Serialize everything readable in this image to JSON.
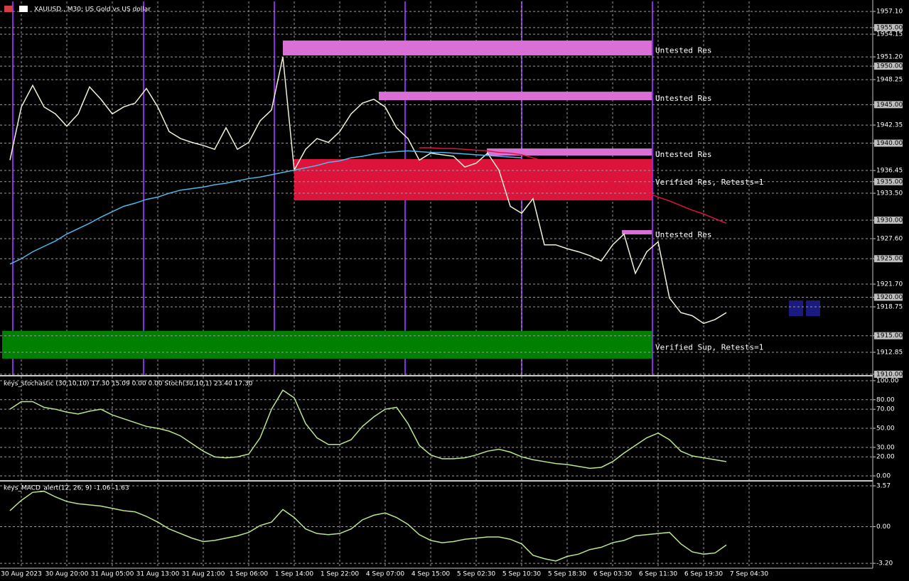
{
  "chart_data": [
    {
      "type": "line",
      "title": "XAUUSD., M30: US Gold vs US dollar",
      "categories": [
        null,
        "30 Aug 2023",
        null,
        null,
        null,
        "30 Aug 20:00",
        null,
        null,
        null,
        "31 Aug 05:00",
        null,
        null,
        null,
        "31 Aug 13:00",
        null,
        null,
        null,
        "31 Aug 21:00",
        null,
        null,
        null,
        "1 Sep 06:00",
        null,
        null,
        null,
        "1 Sep 14:00",
        null,
        null,
        null,
        "1 Sep 22:00",
        null,
        null,
        null,
        "4 Sep 07:00",
        null,
        null,
        null,
        "4 Sep 15:00",
        null,
        null,
        null,
        "5 Sep 02:30",
        null,
        null,
        null,
        "5 Sep 10:30",
        null,
        null,
        null,
        "5 Sep 18:30",
        null,
        null,
        null,
        "6 Sep 03:30",
        null,
        null,
        null,
        "6 Sep 11:30",
        null,
        null,
        null,
        "6 Sep 19:30",
        null,
        null,
        null,
        "7 Sep 04:30"
      ],
      "series": [
        {
          "color": "#f0f0d8",
          "values": [
            1937.8,
            1944.7,
            1947.5,
            1944.7,
            1943.8,
            1942.2,
            1943.8,
            1947.3,
            1945.7,
            1943.8,
            1944.7,
            1945.2,
            1947.1,
            1944.7,
            1941.5,
            1940.6,
            1940.1,
            1939.7,
            1939.2,
            1942.0,
            1939.2,
            1940.1,
            1942.9,
            1944.3,
            1951.2,
            1936.5,
            1939.2,
            1940.6,
            1940.1,
            1941.5,
            1943.8,
            1945.2,
            1945.7,
            1944.7,
            1942.0,
            1940.6,
            1937.8,
            1938.7,
            1938.5,
            1938.3,
            1936.9,
            1937.4,
            1938.7,
            1936.5,
            1931.8,
            1930.9,
            1932.8,
            1926.8,
            1926.8,
            1926.3,
            1925.9,
            1925.4,
            1924.7,
            1926.8,
            1928.2,
            1923.1,
            1925.9,
            1927.2,
            1919.9,
            1918.0,
            1917.6,
            1916.6,
            1917.1,
            1918.0,
            null,
            null
          ]
        },
        {
          "color": "#4fb8e8",
          "values": [
            1924.3,
            1925.0,
            1925.9,
            1926.6,
            1927.3,
            1928.2,
            1928.9,
            1929.6,
            1930.4,
            1931.1,
            1931.8,
            1932.2,
            1932.7,
            1933.0,
            1933.5,
            1933.9,
            1934.1,
            1934.3,
            1934.6,
            1934.8,
            1935.1,
            1935.4,
            1935.6,
            1935.9,
            1936.2,
            1936.5,
            1936.8,
            1937.1,
            1937.5,
            1937.7,
            1938.1,
            1938.3,
            1938.6,
            1938.8,
            1938.9,
            1939.0,
            1938.9,
            1938.8,
            1938.8,
            1938.7,
            1938.6,
            1938.5,
            1938.4,
            1938.3,
            1938.2,
            1938.1,
            null,
            null,
            null,
            null,
            null,
            null,
            null,
            null,
            null,
            null,
            null,
            null,
            null,
            null,
            null,
            null,
            null,
            null,
            null,
            null
          ]
        },
        {
          "color": "#dc143c",
          "values": [
            null,
            null,
            null,
            null,
            null,
            null,
            null,
            null,
            null,
            null,
            null,
            null,
            null,
            null,
            null,
            null,
            null,
            null,
            null,
            null,
            null,
            null,
            null,
            null,
            null,
            null,
            null,
            null,
            null,
            null,
            null,
            null,
            null,
            null,
            null,
            null,
            1939.4,
            1939.4,
            1939.3,
            1939.3,
            1939.2,
            1939.1,
            1939.0,
            1938.8,
            1938.7,
            1938.5,
            1938.1,
            1937.6,
            1937.2,
            1936.7,
            1936.3,
            1935.8,
            1935.4,
            1934.9,
            1934.5,
            1934.0,
            1933.6,
            1933.0,
            1932.5,
            1931.9,
            1931.3,
            1930.8,
            1930.2,
            1929.6,
            null,
            null
          ]
        }
      ],
      "zones": [
        {
          "label": "Untested Res",
          "ymin": 1951.39,
          "ymax": 1953.32,
          "color": "#da70d6"
        },
        {
          "label": "Untested Res",
          "ymin": 1945.58,
          "ymax": 1946.68,
          "color": "#da70d6"
        },
        {
          "label": "Untested Res",
          "ymin": 1938.39,
          "ymax": 1939.31,
          "color": "#da70d6"
        },
        {
          "label": "Verified Res, Retests=1",
          "ymin": 1932.58,
          "ymax": 1937.93,
          "color": "#dc143c"
        },
        {
          "label": "Untested Res",
          "ymin": 1928.16,
          "ymax": 1928.71,
          "color": "#da70d6"
        },
        {
          "label": "Verified Sup, Retests=1",
          "ymin": 1912.03,
          "ymax": 1915.63,
          "color": "#008000"
        }
      ],
      "ylim": [
        1909.9,
        1958.4
      ],
      "yticks": [
        {
          "value": 1957.1,
          "label": "1957.10"
        },
        {
          "value": 1955,
          "label": "1955.00"
        },
        {
          "value": 1954.15,
          "label": "1954.15"
        },
        {
          "value": 1951.2,
          "label": "1951.20"
        },
        {
          "value": 1950,
          "label": "1950.00"
        },
        {
          "value": 1948.25,
          "label": "1948.25"
        },
        {
          "value": 1945,
          "label": "1945.00"
        },
        {
          "value": 1942.35,
          "label": "1942.35"
        },
        {
          "value": 1940,
          "label": "1940.00"
        },
        {
          "value": 1936.45,
          "label": "1936.45"
        },
        {
          "value": 1935,
          "label": "1935.00"
        },
        {
          "value": 1933.5,
          "label": "1933.50"
        },
        {
          "value": 1930,
          "label": "1930.00"
        },
        {
          "value": 1927.6,
          "label": "1927.60"
        },
        {
          "value": 1925,
          "label": "1925.00"
        },
        {
          "value": 1921.7,
          "label": "1921.70"
        },
        {
          "value": 1920,
          "label": "1920.00"
        },
        {
          "value": 1918.75,
          "label": "1918.75"
        },
        {
          "value": 1915,
          "label": "1915.00"
        },
        {
          "value": 1912.85,
          "label": "1912.85"
        },
        {
          "value": 1910,
          "label": "1910.00"
        }
      ],
      "grid": true
    },
    {
      "type": "line",
      "title": "keys_stochastic (30,10,10) 17.30 15.09 0.00 0.00 Stoch(30,10,1) 23.40 17.30",
      "series": [
        {
          "color": "#b8e68c",
          "values": [
            70,
            78,
            78,
            72,
            70,
            67,
            65,
            68,
            70,
            64,
            60,
            56,
            52,
            50,
            47,
            42,
            34,
            26,
            20,
            19,
            20,
            23,
            40,
            70,
            90,
            82,
            55,
            40,
            33,
            33,
            38,
            52,
            62,
            70,
            72,
            55,
            32,
            22,
            18,
            18,
            19,
            22,
            26,
            28,
            25,
            20,
            17,
            15,
            13,
            12,
            10,
            8,
            9,
            15,
            24,
            32,
            40,
            45,
            38,
            26,
            21,
            19,
            17,
            15,
            null,
            null
          ]
        }
      ],
      "ylim": [
        -3.7,
        103.7
      ],
      "yticks": [
        {
          "value": 100,
          "label": "100.00"
        },
        {
          "value": 80,
          "label": "80.00"
        },
        {
          "value": 70,
          "label": "70.00"
        },
        {
          "value": 50,
          "label": "50.00"
        },
        {
          "value": 30,
          "label": "30.00"
        },
        {
          "value": 20,
          "label": "20.00"
        },
        {
          "value": 0,
          "label": "0.00"
        }
      ],
      "grid": true
    },
    {
      "type": "line",
      "title": "keys_MACD_alert(12, 26, 9) -1.06 -1.63",
      "series": [
        {
          "color": "#b8e68c",
          "values": [
            1.4,
            2.3,
            3.0,
            3.1,
            2.6,
            2.2,
            2.0,
            1.9,
            1.8,
            1.6,
            1.4,
            1.3,
            0.9,
            0.4,
            -0.2,
            -0.6,
            -1.0,
            -1.3,
            -1.2,
            -1.0,
            -0.8,
            -0.5,
            0.1,
            0.4,
            1.5,
            0.8,
            -0.2,
            -0.6,
            -0.7,
            -0.6,
            -0.2,
            0.6,
            1.0,
            1.2,
            0.8,
            0.2,
            -0.7,
            -1.2,
            -1.4,
            -1.3,
            -1.1,
            -1.0,
            -0.9,
            -0.9,
            -1.1,
            -1.5,
            -2.5,
            -2.8,
            -3.0,
            -2.6,
            -2.4,
            -2.0,
            -1.8,
            -1.4,
            -1.2,
            -0.8,
            -0.7,
            -0.6,
            -0.5,
            -1.5,
            -2.2,
            -2.4,
            -2.3,
            -1.6,
            null,
            null
          ]
        }
      ],
      "ylim": [
        -3.63,
        3.88
      ],
      "yticks": [
        3.57,
        {
          "value": 0,
          "label": "0.00"
        },
        {
          "value": -3.2,
          "label": "-3.20"
        }
      ],
      "grid": true
    }
  ]
}
